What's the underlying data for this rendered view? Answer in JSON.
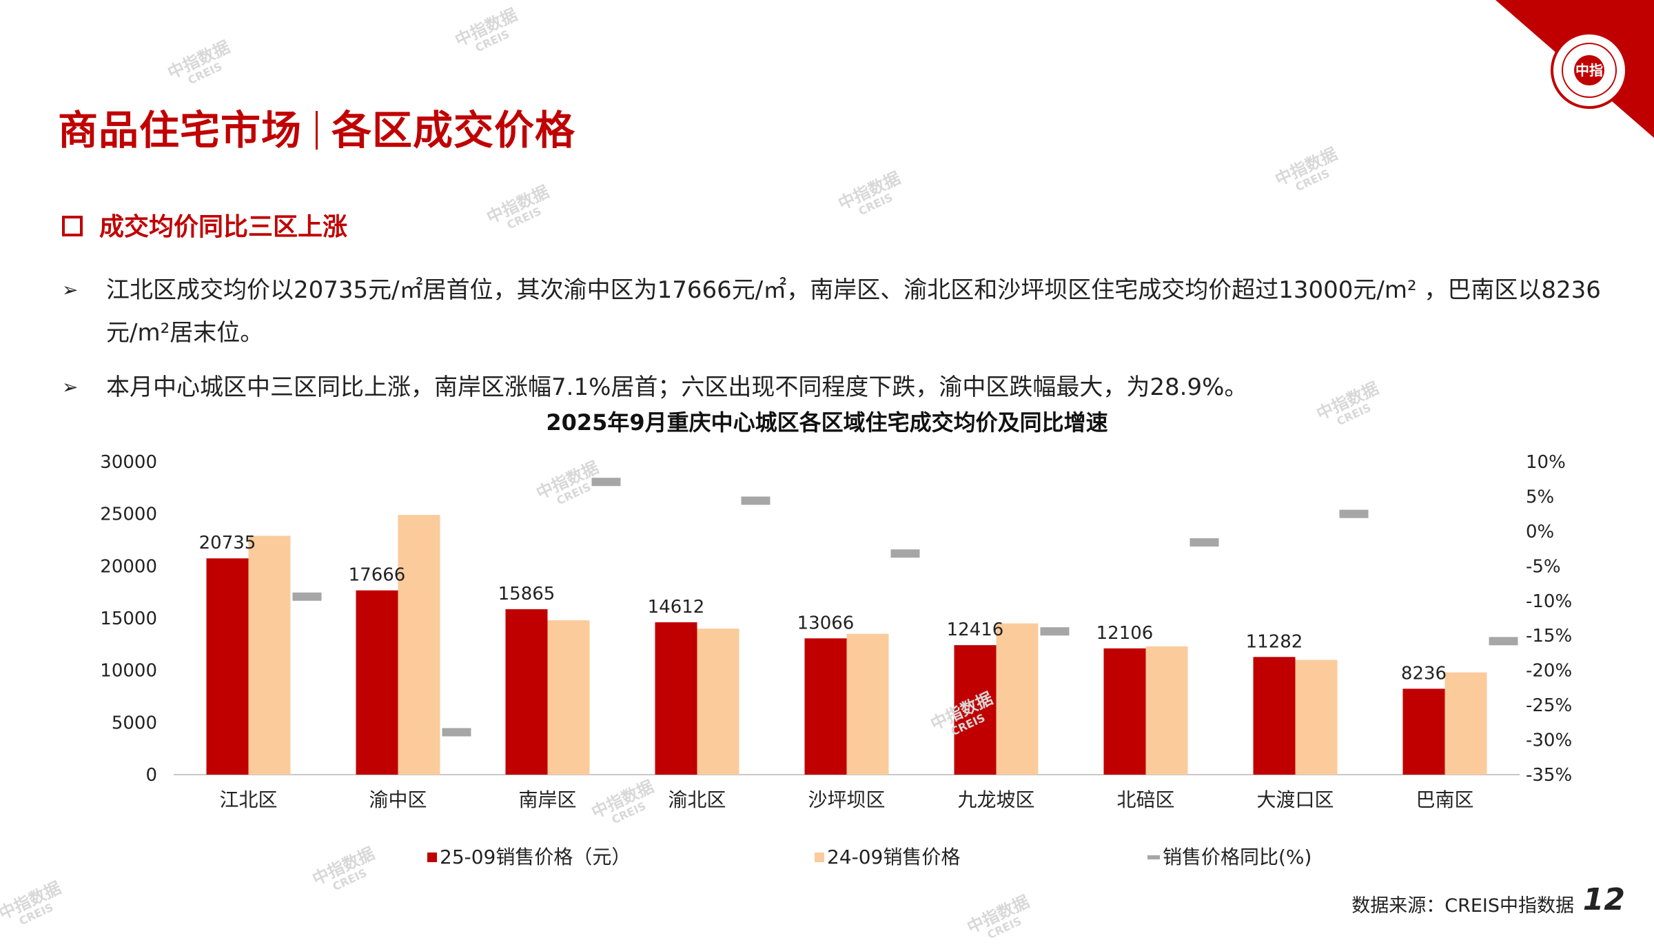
{
  "header": {
    "title_left": "商品住宅市场",
    "title_right": "各区成交价格",
    "logo_text": "中指"
  },
  "section": {
    "heading": "成交均价同比三区上涨",
    "bullets": [
      "江北区成交均价以20735元/㎡居首位，其次渝中区为17666元/㎡，南岸区、渝北区和沙坪坝区住宅成交均价超过13000元/m² ，巴南区以8236元/m²居末位。",
      "本月中心城区中三区同比上涨，南岸区涨幅7.1%居首；六区出现不同程度下跌，渝中区跌幅最大，为28.9%。"
    ]
  },
  "watermark": {
    "cn": "中指数据",
    "en": "CREIS"
  },
  "chart_data": {
    "type": "bar",
    "title": "2025年9月重庆中心城区各区域住宅成交均价及同比增速",
    "categories": [
      "江北区",
      "渝中区",
      "南岸区",
      "渝北区",
      "沙坪坝区",
      "九龙坡区",
      "北碚区",
      "大渡口区",
      "巴南区"
    ],
    "series": [
      {
        "name": "25-09销售价格（元）",
        "values": [
          20735,
          17666,
          15865,
          14612,
          13066,
          12416,
          12106,
          11282,
          8236
        ],
        "color": "#c00000",
        "axis": "left"
      },
      {
        "name": "24-09销售价格",
        "values": [
          22900,
          24900,
          14800,
          14000,
          13500,
          14500,
          12300,
          11000,
          9800
        ],
        "color": "#fbcb9c",
        "axis": "left"
      },
      {
        "name": "销售价格同比(%)",
        "values": [
          -9.4,
          -28.9,
          7.1,
          4.4,
          -3.2,
          -14.4,
          -1.6,
          2.5,
          -15.8
        ],
        "color": "#a6a6a6",
        "axis": "right",
        "marker": "dash"
      }
    ],
    "y_left": {
      "min": 0,
      "max": 30000,
      "ticks": [
        "0",
        "5000",
        "10000",
        "15000",
        "20000",
        "25000",
        "30000"
      ]
    },
    "y_right": {
      "min": -35,
      "max": 10,
      "ticks": [
        "-35%",
        "-30%",
        "-25%",
        "-20%",
        "-15%",
        "-10%",
        "-5%",
        "0%",
        "5%",
        "10%"
      ]
    },
    "data_labels": [
      "20735",
      "17666",
      "15865",
      "14612",
      "13066",
      "12416",
      "12106",
      "11282",
      "8236"
    ],
    "grid": false,
    "legend_position": "bottom"
  },
  "footer": {
    "source": "数据来源：CREIS中指数据",
    "page": "12"
  }
}
